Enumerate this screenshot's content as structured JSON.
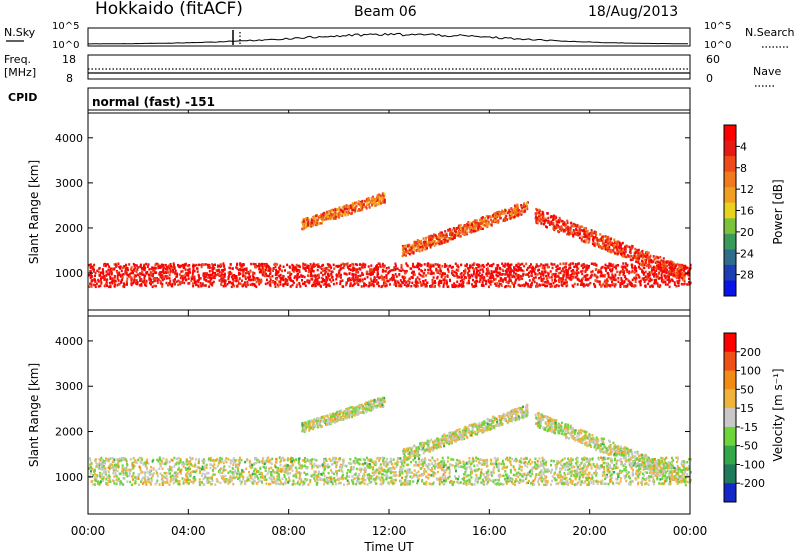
{
  "header": {
    "station": "Hokkaido (fitACF)",
    "beam": "Beam 06",
    "date": "18/Aug/2013"
  },
  "noise_panel": {
    "left_label": "N.Sky",
    "right_label": "N.Search",
    "left_ticks": [
      "10^5",
      "10^0"
    ],
    "right_ticks": [
      "10^5",
      "10^0"
    ]
  },
  "freq_panel": {
    "left_label_line1": "Freq.",
    "left_label_line2": "[MHz]",
    "left_ticks": [
      "18",
      "8"
    ],
    "right_label": "Nave",
    "right_ticks": [
      "60",
      "0"
    ],
    "freq_value_mhz": 10.5,
    "nave_value": 25
  },
  "cpid": {
    "label": "CPID",
    "value": "normal (fast) -151"
  },
  "time_axis": {
    "label": "Time UT",
    "ticks": [
      "00:00",
      "04:00",
      "08:00",
      "12:00",
      "16:00",
      "20:00",
      "00:00"
    ]
  },
  "chart_data": [
    {
      "type": "heatmap",
      "name": "power",
      "ylabel": "Slant Range [km]",
      "xlabel": "Time UT",
      "xlim_hours": [
        0,
        24
      ],
      "ylim_km": [
        180,
        4550
      ],
      "y_ticks": [
        1000,
        2000,
        3000,
        4000
      ],
      "colorbar": {
        "label": "Power [dB]",
        "ticks": [
          "4",
          "8",
          "12",
          "16",
          "20",
          "24",
          "28"
        ],
        "colors": [
          "#0a14e6",
          "#1e3fb4",
          "#2e6e8c",
          "#3a9a5a",
          "#7cc23c",
          "#e8d21e",
          "#f0a020",
          "#f07a1e",
          "#ee4a1a",
          "#e61a14",
          "#ff0000"
        ]
      },
      "bands": [
        {
          "t0": 0.0,
          "t1": 24.0,
          "r_start": 980,
          "r_end": 980,
          "half_width": 260,
          "level": 0.93
        },
        {
          "t0": 8.5,
          "t1": 11.8,
          "r_start": 2100,
          "r_end": 2700,
          "half_width": 110,
          "level": 0.7
        },
        {
          "t0": 12.5,
          "t1": 17.5,
          "r_start": 1500,
          "r_end": 2500,
          "half_width": 130,
          "level": 0.75
        },
        {
          "t0": 17.8,
          "t1": 23.8,
          "r_start": 2300,
          "r_end": 1000,
          "half_width": 160,
          "level": 0.85
        }
      ]
    },
    {
      "type": "heatmap",
      "name": "velocity",
      "ylabel": "Slant Range [km]",
      "xlabel": "Time UT",
      "xlim_hours": [
        0,
        24
      ],
      "ylim_km": [
        180,
        4550
      ],
      "y_ticks": [
        1000,
        2000,
        3000,
        4000
      ],
      "colorbar": {
        "label": "Velocity [m s⁻¹]",
        "ticks": [
          "200",
          "100",
          "50",
          "15",
          "-15",
          "-50",
          "-100",
          "-200"
        ],
        "colors": [
          "#1428c8",
          "#1e7a5a",
          "#32a84a",
          "#6ed43c",
          "#c8c8c8",
          "#f0b43c",
          "#f08c14",
          "#f05014",
          "#ff0000"
        ]
      },
      "bands": [
        {
          "t0": 0.0,
          "t1": 24.0,
          "r_start": 1150,
          "r_end": 1150,
          "half_width": 300,
          "level": 0.5
        },
        {
          "t0": 8.5,
          "t1": 11.8,
          "r_start": 2100,
          "r_end": 2700,
          "half_width": 110,
          "level": 0.5
        },
        {
          "t0": 12.5,
          "t1": 17.5,
          "r_start": 1500,
          "r_end": 2500,
          "half_width": 130,
          "level": 0.5
        },
        {
          "t0": 17.8,
          "t1": 23.8,
          "r_start": 2300,
          "r_end": 1000,
          "half_width": 160,
          "level": 0.5
        }
      ]
    }
  ]
}
